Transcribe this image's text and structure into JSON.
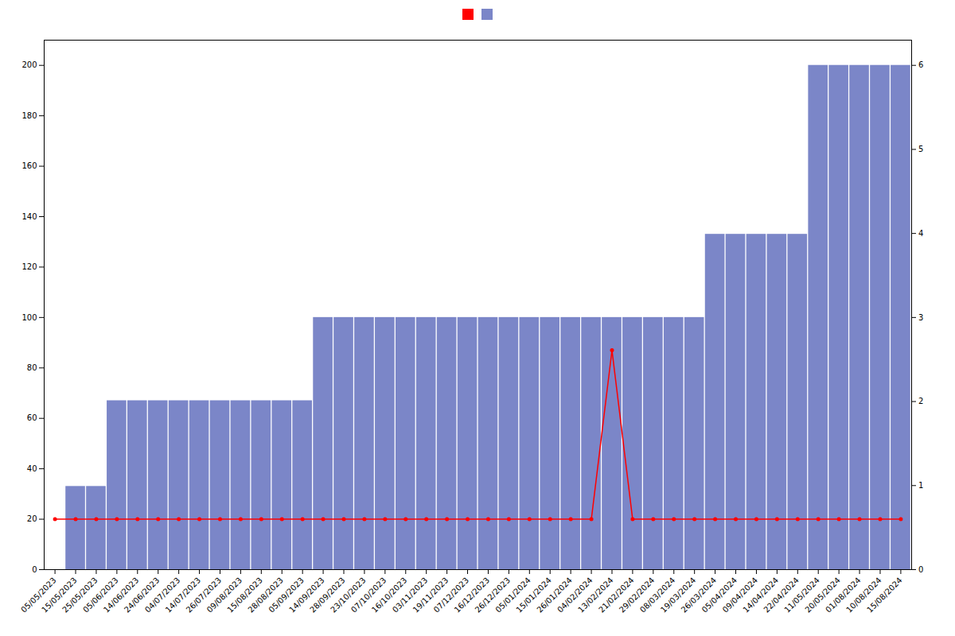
{
  "chart_data": {
    "type": "bar",
    "categories": [
      "05/05/2023",
      "15/05/2023",
      "25/05/2023",
      "05/06/2023",
      "14/06/2023",
      "24/06/2023",
      "04/07/2023",
      "14/07/2023",
      "26/07/2023",
      "09/08/2023",
      "15/08/2023",
      "28/08/2023",
      "05/09/2023",
      "14/09/2023",
      "28/09/2023",
      "23/10/2023",
      "07/10/2023",
      "16/10/2023",
      "03/11/2023",
      "19/11/2023",
      "07/12/2023",
      "16/12/2023",
      "26/12/2023",
      "05/01/2024",
      "15/01/2024",
      "26/01/2024",
      "04/02/2024",
      "13/02/2024",
      "21/02/2024",
      "29/02/2024",
      "08/03/2024",
      "19/03/2024",
      "26/03/2024",
      "05/04/2024",
      "09/04/2024",
      "14/04/2024",
      "22/04/2024",
      "11/05/2024",
      "20/05/2024",
      "01/08/2024",
      "10/08/2024",
      "15/08/2024"
    ],
    "series": [
      {
        "type": "line",
        "color": "#ff0000",
        "marker": "circle",
        "values": [
          20,
          20,
          20,
          20,
          20,
          20,
          20,
          20,
          20,
          20,
          20,
          20,
          20,
          20,
          20,
          20,
          20,
          20,
          20,
          20,
          20,
          20,
          20,
          20,
          20,
          20,
          20,
          87,
          20,
          20,
          20,
          20,
          20,
          20,
          20,
          20,
          20,
          20,
          20,
          20,
          20,
          20
        ]
      },
      {
        "type": "bar",
        "color": "#7b86c8",
        "values": [
          0,
          33,
          33,
          67,
          67,
          67,
          67,
          67,
          67,
          67,
          67,
          67,
          67,
          100,
          100,
          100,
          100,
          100,
          100,
          100,
          100,
          100,
          100,
          100,
          100,
          100,
          100,
          100,
          100,
          100,
          100,
          100,
          133,
          133,
          133,
          133,
          133,
          200,
          200,
          200,
          200,
          200
        ]
      }
    ],
    "ylim": [
      0,
      210
    ],
    "yticks": [
      0,
      20,
      40,
      60,
      80,
      100,
      120,
      140,
      160,
      180,
      200
    ],
    "y2lim": [
      0,
      6.3
    ],
    "y2ticks": [
      0,
      1,
      2,
      3,
      4,
      5,
      6
    ],
    "legend": "top",
    "grid": false
  }
}
